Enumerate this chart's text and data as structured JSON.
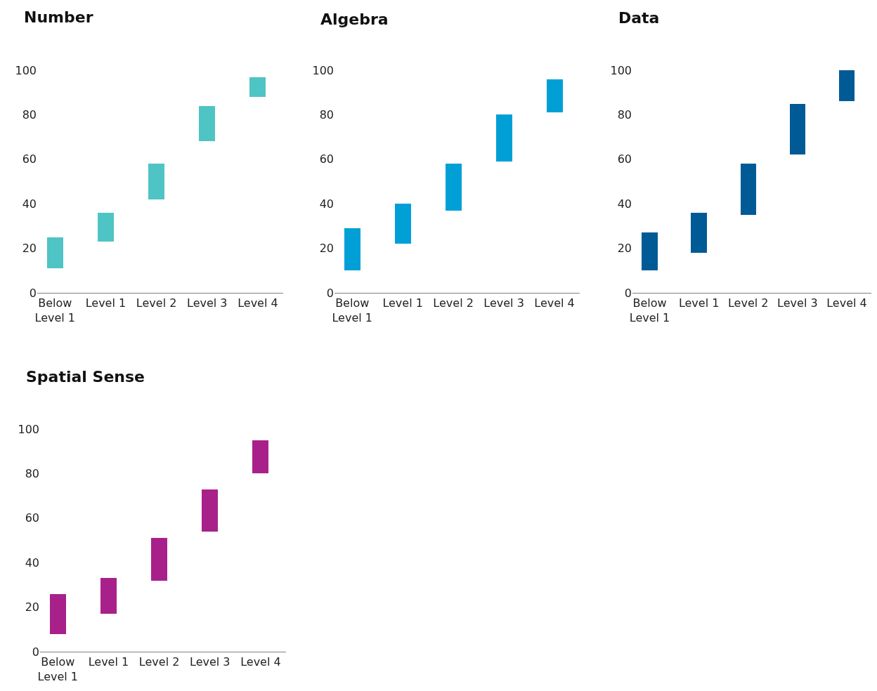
{
  "chart_data": [
    {
      "type": "bar",
      "title": "Number",
      "categories": [
        "Below\nLevel 1",
        "Level 1",
        "Level 2",
        "Level 3",
        "Level 4"
      ],
      "base": [
        11,
        23,
        42,
        68,
        88
      ],
      "values": [
        14,
        13,
        16,
        16,
        9
      ],
      "color": "#4fc4c4",
      "ylim": [
        0,
        100
      ],
      "yticks": [
        0,
        20,
        40,
        60,
        80,
        100
      ]
    },
    {
      "type": "bar",
      "title": "Algebra",
      "categories": [
        "Below\nLevel 1",
        "Level 1",
        "Level 2",
        "Level 3",
        "Level 4"
      ],
      "base": [
        10,
        22,
        37,
        59,
        81
      ],
      "values": [
        19,
        18,
        21,
        21,
        15
      ],
      "color": "#00a0d6",
      "ylim": [
        0,
        100
      ],
      "yticks": [
        0,
        20,
        40,
        60,
        80,
        100
      ]
    },
    {
      "type": "bar",
      "title": "Data",
      "categories": [
        "Below\nLevel 1",
        "Level 1",
        "Level 2",
        "Level 3",
        "Level 4"
      ],
      "base": [
        10,
        18,
        35,
        62,
        86
      ],
      "values": [
        17,
        18,
        23,
        23,
        14
      ],
      "color": "#005a96",
      "ylim": [
        0,
        100
      ],
      "yticks": [
        0,
        20,
        40,
        60,
        80,
        100
      ]
    },
    {
      "type": "bar",
      "title": "Spatial Sense",
      "categories": [
        "Below\nLevel 1",
        "Level 1",
        "Level 2",
        "Level 3",
        "Level 4"
      ],
      "base": [
        8,
        17,
        32,
        54,
        80
      ],
      "values": [
        18,
        16,
        19,
        19,
        15
      ],
      "color": "#a8218a",
      "ylim": [
        0,
        100
      ],
      "yticks": [
        0,
        20,
        40,
        60,
        80,
        100
      ]
    }
  ]
}
